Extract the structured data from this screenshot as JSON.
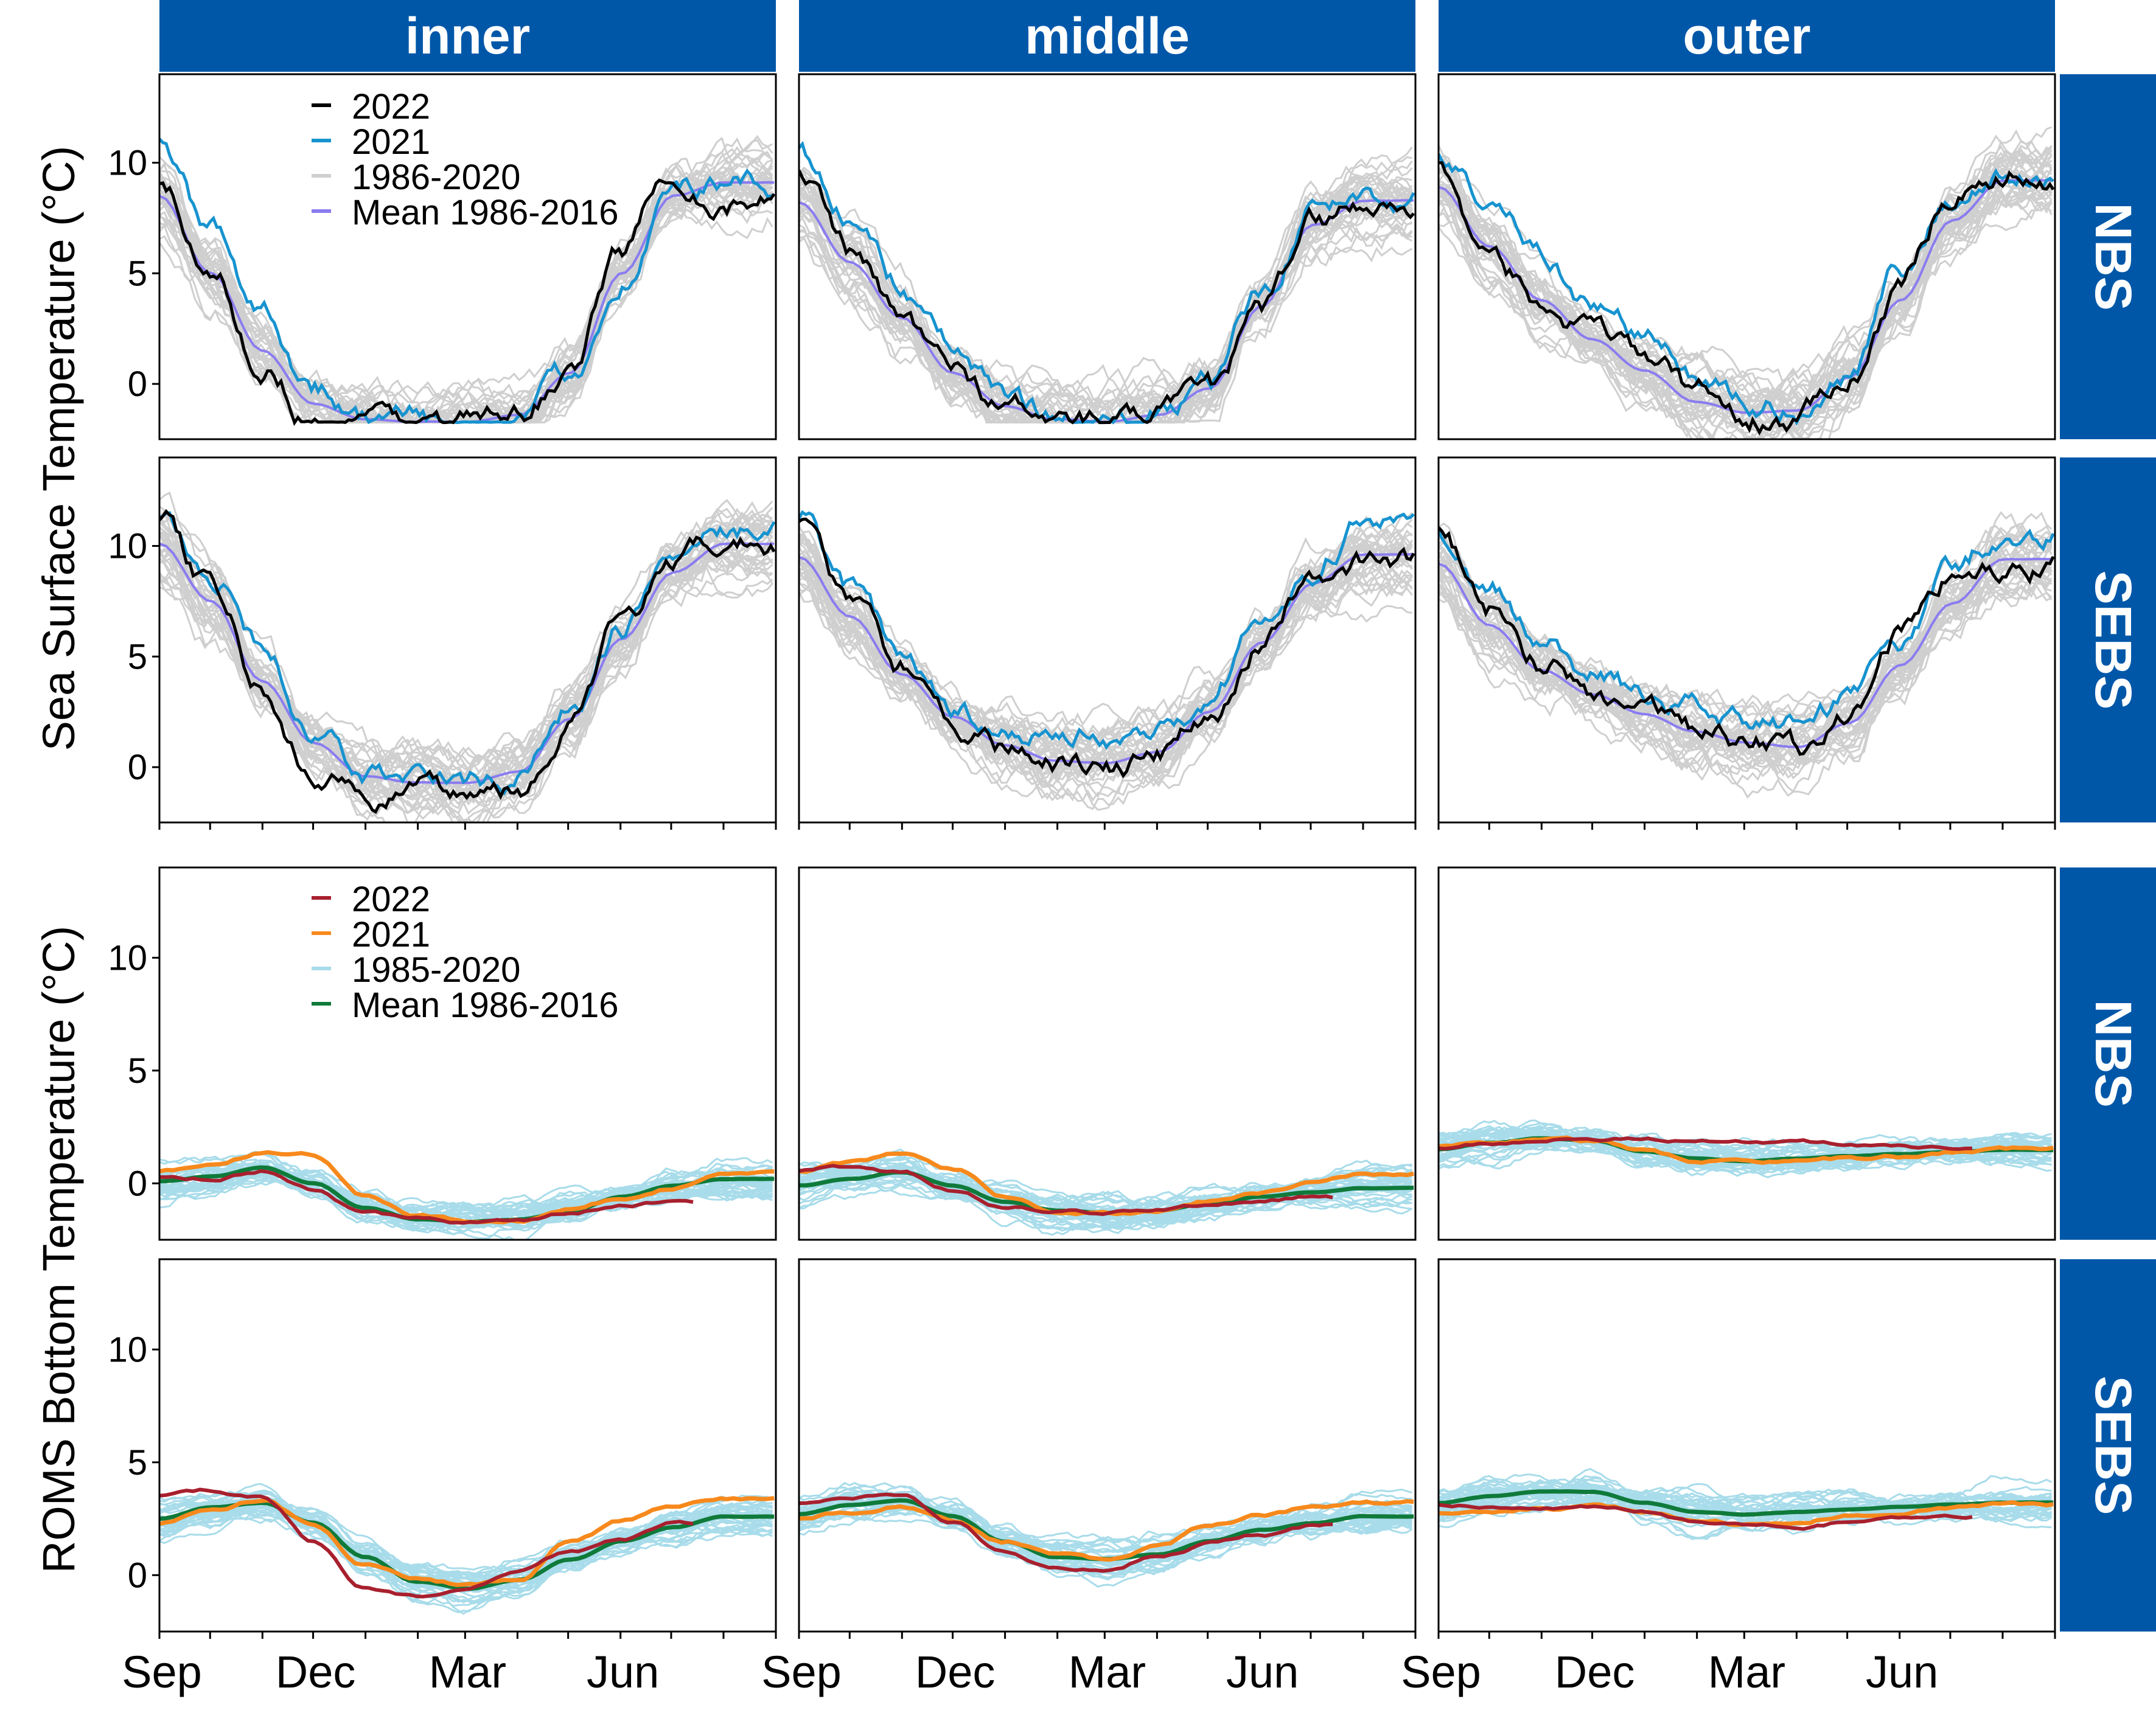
{
  "colors": {
    "strip": "#0057a8",
    "sst_2022": "#000000",
    "sst_2021": "#1793cf",
    "sst_hist": "#cfcfcf",
    "sst_mean": "#8a7cf0",
    "bt_2022": "#a8202e",
    "bt_2021": "#f7891c",
    "bt_hist": "#a8dcea",
    "bt_mean": "#0f7a3a"
  },
  "figure": {
    "columns": [
      "inner",
      "middle",
      "outer"
    ],
    "rows_top": [
      "NBS",
      "SEBS"
    ],
    "rows_bottom": [
      "NBS",
      "SEBS"
    ],
    "ylabel_top": "Sea Surface Temperature (°C)",
    "ylabel_bottom": "ROMS Bottom Temperature (°C)",
    "month_labels": [
      "Sep",
      "Dec",
      "Mar",
      "Jun"
    ]
  },
  "chart_data": [
    {
      "type": "line",
      "group": "sea_surface_temperature",
      "ylabel": "Sea Surface Temperature (°C)",
      "x_axis": "day of season, 1 Sep to 31 Aug",
      "x_ticks": [
        "Sep",
        "Dec",
        "Mar",
        "Jun"
      ],
      "ylim": [
        -2.5,
        14
      ],
      "yticks": [
        0,
        5,
        10
      ],
      "legend": {
        "placement": "top-left of first panel",
        "entries": [
          {
            "label": "2022",
            "color": "#000000"
          },
          {
            "label": "2021",
            "color": "#1793cf"
          },
          {
            "label": "1986-2020",
            "color": "#cfcfcf"
          },
          {
            "label": "Mean 1986-2016",
            "color": "#8a7cf0"
          }
        ]
      },
      "panels": [
        {
          "region": "NBS",
          "shelf": "inner",
          "x_months": [
            0,
            1,
            2,
            3,
            4,
            5,
            6,
            7,
            8,
            9,
            10,
            11
          ],
          "series": [
            {
              "name": "2022",
              "values": [
                8.7,
                5.2,
                1.0,
                -1.4,
                -1.7,
                -1.7,
                -1.7,
                -1.6,
                0.8,
                6.0,
                9.8,
                8.2
              ]
            },
            {
              "name": "2021",
              "values": [
                10.8,
                7.0,
                3.5,
                0.0,
                -1.5,
                -1.7,
                -1.7,
                -1.6,
                0.2,
                5.0,
                8.8,
                8.9
              ]
            },
            {
              "name": "Mean 1986-2016",
              "values": [
                8.5,
                5.0,
                1.5,
                -0.9,
                -1.6,
                -1.7,
                -1.7,
                -1.4,
                0.5,
                5.0,
                8.5,
                9.1
              ]
            }
          ]
        },
        {
          "region": "NBS",
          "shelf": "middle",
          "x_months": [
            0,
            1,
            2,
            3,
            4,
            5,
            6,
            7,
            8,
            9,
            10,
            11
          ],
          "series": [
            {
              "name": "2022",
              "values": [
                9.4,
                5.8,
                2.8,
                0.5,
                -1.0,
                -1.7,
                -1.7,
                -1.6,
                -0.5,
                3.0,
                7.3,
                8.1
              ]
            },
            {
              "name": "2021",
              "values": [
                10.4,
                7.5,
                4.5,
                1.5,
                -0.7,
                -1.5,
                -1.7,
                -1.5,
                -0.1,
                4.0,
                8.0,
                8.6
              ]
            },
            {
              "name": "Mean 1986-2016",
              "values": [
                8.2,
                5.5,
                3.0,
                0.5,
                -1.0,
                -1.6,
                -1.7,
                -1.4,
                -0.2,
                3.5,
                7.2,
                8.3
              ]
            }
          ]
        },
        {
          "region": "NBS",
          "shelf": "outer",
          "x_months": [
            0,
            1,
            2,
            3,
            4,
            5,
            6,
            7,
            8,
            9,
            10,
            11
          ],
          "series": [
            {
              "name": "2022",
              "values": [
                9.8,
                6.0,
                3.5,
                2.2,
                1.2,
                -0.5,
                -1.5,
                -1.6,
                0.5,
                4.6,
                8.6,
                9.5
              ]
            },
            {
              "name": "2021",
              "values": [
                10.6,
                8.3,
                6.0,
                3.7,
                2.3,
                0.3,
                -0.9,
                -1.1,
                0.7,
                5.2,
                8.5,
                9.3
              ]
            },
            {
              "name": "Mean 1986-2016",
              "values": [
                8.9,
                6.2,
                3.8,
                2.0,
                0.6,
                -0.8,
                -1.3,
                -1.2,
                0.3,
                3.8,
                7.4,
                9.2
              ]
            }
          ]
        },
        {
          "region": "SEBS",
          "shelf": "inner",
          "x_months": [
            0,
            1,
            2,
            3,
            4,
            5,
            6,
            7,
            8,
            9,
            10,
            11
          ],
          "series": [
            {
              "name": "2022",
              "values": [
                11.3,
                8.0,
                3.5,
                -0.5,
                -1.4,
                -1.3,
                -1.1,
                -0.8,
                2.0,
                6.5,
                9.0,
                10.1
              ]
            },
            {
              "name": "2021",
              "values": [
                11.3,
                8.8,
                5.2,
                1.8,
                -0.3,
                -0.5,
                -0.7,
                -0.4,
                2.5,
                6.3,
                10.0,
                11.0
              ]
            },
            {
              "name": "Mean 1986-2016",
              "values": [
                10.1,
                7.5,
                3.9,
                1.1,
                -0.4,
                -0.7,
                -0.7,
                -0.2,
                2.2,
                5.8,
                8.8,
                10.1
              ]
            }
          ]
        },
        {
          "region": "SEBS",
          "shelf": "middle",
          "x_months": [
            0,
            1,
            2,
            3,
            4,
            5,
            6,
            7,
            8,
            9,
            10,
            11
          ],
          "series": [
            {
              "name": "2022",
              "values": [
                11.3,
                7.5,
                4.5,
                2.3,
                0.8,
                0.2,
                -0.1,
                0.5,
                2.3,
                5.8,
                8.7,
                9.3
              ]
            },
            {
              "name": "2021",
              "values": [
                11.0,
                8.0,
                5.1,
                3.0,
                1.8,
                1.5,
                1.4,
                2.0,
                3.3,
                6.5,
                9.3,
                11.2
              ]
            },
            {
              "name": "Mean 1986-2016",
              "values": [
                9.5,
                6.8,
                4.2,
                2.3,
                1.0,
                0.3,
                0.2,
                0.7,
                2.5,
                5.6,
                8.3,
                9.6
              ]
            }
          ]
        },
        {
          "region": "SEBS",
          "shelf": "outer",
          "x_months": [
            0,
            1,
            2,
            3,
            4,
            5,
            6,
            7,
            8,
            9,
            10,
            11
          ],
          "series": [
            {
              "name": "2022",
              "values": [
                10.8,
                7.0,
                4.8,
                3.3,
                2.8,
                1.6,
                1.2,
                0.6,
                2.2,
                5.9,
                8.8,
                9.2
              ]
            },
            {
              "name": "2021",
              "values": [
                10.8,
                8.0,
                6.0,
                4.3,
                3.3,
                2.6,
                2.2,
                1.9,
                3.0,
                5.6,
                8.9,
                10.6
              ]
            },
            {
              "name": "Mean 1986-2016",
              "values": [
                9.2,
                6.4,
                4.4,
                3.3,
                2.4,
                1.6,
                1.1,
                0.9,
                2.0,
                4.6,
                7.4,
                9.4
              ]
            }
          ]
        }
      ]
    },
    {
      "type": "line",
      "group": "roms_bottom_temperature",
      "ylabel": "ROMS Bottom Temperature (°C)",
      "x_axis": "day of season, 1 Sep to 31 Aug",
      "x_ticks": [
        "Sep",
        "Dec",
        "Mar",
        "Jun"
      ],
      "ylim": [
        -2.5,
        14
      ],
      "yticks": [
        0,
        5,
        10
      ],
      "legend": {
        "placement": "top-left of first panel",
        "entries": [
          {
            "label": "2022",
            "color": "#a8202e"
          },
          {
            "label": "2021",
            "color": "#f7891c"
          },
          {
            "label": "1985-2020",
            "color": "#a8dcea"
          },
          {
            "label": "Mean 1986-2016",
            "color": "#0f7a3a"
          }
        ]
      },
      "panels": [
        {
          "region": "NBS",
          "shelf": "inner",
          "x_months": [
            0,
            1,
            2,
            3,
            4,
            5,
            6,
            7,
            8,
            9,
            10,
            11
          ],
          "series": [
            {
              "name": "2022",
              "values": [
                0.3,
                0.2,
                0.6,
                -0.3,
                -1.3,
                -1.6,
                -1.7,
                -1.6,
                -1.3,
                -1.0,
                -0.8,
                null
              ]
            },
            {
              "name": "2021",
              "values": [
                0.5,
                0.9,
                1.4,
                1.3,
                -0.6,
                -1.5,
                -1.7,
                -1.6,
                -1.2,
                -0.7,
                -0.2,
                0.3
              ]
            },
            {
              "name": "Mean 1986-2016",
              "values": [
                0.1,
                0.3,
                0.7,
                0.0,
                -1.1,
                -1.6,
                -1.7,
                -1.6,
                -1.2,
                -0.6,
                -0.1,
                0.2
              ]
            }
          ]
        },
        {
          "region": "NBS",
          "shelf": "middle",
          "x_months": [
            0,
            1,
            2,
            3,
            4,
            5,
            6,
            7,
            8,
            9,
            10,
            11
          ],
          "series": [
            {
              "name": "2022",
              "values": [
                0.6,
                0.7,
                0.5,
                -0.3,
                -1.0,
                -1.2,
                -1.3,
                -1.2,
                -1.0,
                -0.8,
                -0.6,
                null
              ]
            },
            {
              "name": "2021",
              "values": [
                0.5,
                0.9,
                1.3,
                0.7,
                -0.6,
                -1.2,
                -1.3,
                -1.2,
                -0.8,
                -0.4,
                0.0,
                0.4
              ]
            },
            {
              "name": "Mean 1986-2016",
              "values": [
                -0.1,
                0.2,
                0.5,
                -0.1,
                -0.8,
                -1.2,
                -1.3,
                -1.2,
                -0.9,
                -0.6,
                -0.4,
                -0.2
              ]
            }
          ]
        },
        {
          "region": "NBS",
          "shelf": "outer",
          "x_months": [
            0,
            1,
            2,
            3,
            4,
            5,
            6,
            7,
            8,
            9,
            10,
            11
          ],
          "series": [
            {
              "name": "2022",
              "values": [
                1.6,
                1.8,
                2.0,
                2.0,
                2.0,
                1.9,
                1.8,
                1.8,
                1.7,
                1.6,
                1.6,
                null
              ]
            },
            {
              "name": "2021",
              "values": [
                1.6,
                1.8,
                2.0,
                1.9,
                1.5,
                1.0,
                1.0,
                1.0,
                1.1,
                1.2,
                1.4,
                1.5
              ]
            },
            {
              "name": "Mean 1986-2016",
              "values": [
                1.5,
                1.8,
                2.0,
                1.9,
                1.4,
                1.1,
                1.0,
                1.1,
                1.2,
                1.3,
                1.4,
                1.5
              ]
            }
          ]
        },
        {
          "region": "SEBS",
          "shelf": "inner",
          "x_months": [
            0,
            1,
            2,
            3,
            4,
            5,
            6,
            7,
            8,
            9,
            10,
            11
          ],
          "series": [
            {
              "name": "2022",
              "values": [
                3.5,
                3.7,
                3.5,
                1.5,
                -0.5,
                -0.9,
                -0.6,
                0.2,
                1.0,
                1.6,
                2.3,
                null
              ]
            },
            {
              "name": "2021",
              "values": [
                2.3,
                2.8,
                3.3,
                2.2,
                0.5,
                -0.1,
                -0.4,
                -0.3,
                1.5,
                2.4,
                3.0,
                3.4
              ]
            },
            {
              "name": "Mean 1986-2016",
              "values": [
                2.5,
                3.0,
                3.2,
                2.3,
                0.8,
                -0.3,
                -0.6,
                -0.2,
                0.7,
                1.5,
                2.1,
                2.6
              ]
            }
          ]
        },
        {
          "region": "SEBS",
          "shelf": "middle",
          "x_months": [
            0,
            1,
            2,
            3,
            4,
            5,
            6,
            7,
            8,
            9,
            10,
            11
          ],
          "series": [
            {
              "name": "2022",
              "values": [
                3.2,
                3.5,
                3.6,
                2.4,
                1.0,
                0.3,
                0.2,
                0.8,
                1.4,
                1.8,
                2.2,
                null
              ]
            },
            {
              "name": "2021",
              "values": [
                2.5,
                2.8,
                3.1,
                2.4,
                1.5,
                1.0,
                0.7,
                1.3,
                2.2,
                2.7,
                3.0,
                3.2
              ]
            },
            {
              "name": "Mean 1986-2016",
              "values": [
                2.7,
                3.1,
                3.3,
                2.6,
                1.5,
                0.8,
                0.7,
                0.9,
                1.5,
                2.0,
                2.3,
                2.6
              ]
            }
          ]
        },
        {
          "region": "SEBS",
          "shelf": "outer",
          "x_months": [
            0,
            1,
            2,
            3,
            4,
            5,
            6,
            7,
            8,
            9,
            10,
            11
          ],
          "series": [
            {
              "name": "2022",
              "values": [
                3.1,
                3.1,
                3.0,
                3.0,
                2.8,
                2.4,
                2.2,
                2.1,
                2.3,
                2.4,
                2.5,
                null
              ]
            },
            {
              "name": "2021",
              "values": [
                2.8,
                2.9,
                3.0,
                3.0,
                2.8,
                2.5,
                2.3,
                2.4,
                2.7,
                2.9,
                3.0,
                3.1
              ]
            },
            {
              "name": "Mean 1986-2016",
              "values": [
                3.2,
                3.5,
                3.7,
                3.7,
                3.2,
                2.8,
                2.7,
                2.8,
                2.9,
                3.0,
                3.1,
                3.2
              ]
            }
          ]
        }
      ]
    }
  ]
}
